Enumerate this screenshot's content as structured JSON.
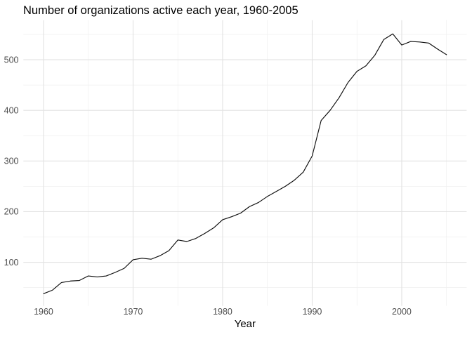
{
  "chart_data": {
    "type": "line",
    "title": "Number of organizations active each year, 1960-2005",
    "xlabel": "Year",
    "ylabel": "",
    "x": [
      1960,
      1961,
      1962,
      1963,
      1964,
      1965,
      1966,
      1967,
      1968,
      1969,
      1970,
      1971,
      1972,
      1973,
      1974,
      1975,
      1976,
      1977,
      1978,
      1979,
      1980,
      1981,
      1982,
      1983,
      1984,
      1985,
      1986,
      1987,
      1988,
      1989,
      1990,
      1991,
      1992,
      1993,
      1994,
      1995,
      1996,
      1997,
      1998,
      1999,
      2000,
      2001,
      2002,
      2003,
      2004,
      2005
    ],
    "values": [
      38,
      45,
      60,
      63,
      64,
      73,
      71,
      73,
      80,
      88,
      105,
      108,
      106,
      113,
      123,
      144,
      141,
      147,
      157,
      168,
      184,
      190,
      197,
      210,
      218,
      230,
      240,
      250,
      262,
      278,
      310,
      380,
      400,
      425,
      455,
      477,
      488,
      509,
      540,
      551,
      529,
      536,
      535,
      533,
      521,
      510
    ],
    "x_major_ticks": [
      1960,
      1970,
      1980,
      1990,
      2000
    ],
    "x_minor_ticks": [
      1965,
      1975,
      1985,
      1995,
      2005
    ],
    "y_major_ticks": [
      100,
      200,
      300,
      400,
      500
    ],
    "y_minor_ticks": [
      50,
      150,
      250,
      350,
      450,
      550
    ],
    "xlim": [
      1957.75,
      2007.25
    ],
    "ylim": [
      14,
      578
    ],
    "grid": true,
    "legend": false,
    "colors": {
      "line": "#0d0d0d",
      "grid_major": "#e2e2e2",
      "grid_minor": "#efefef",
      "tick_label": "#4d4d4d",
      "axis_title": "#000000",
      "title": "#000000",
      "background": "#ffffff"
    }
  }
}
